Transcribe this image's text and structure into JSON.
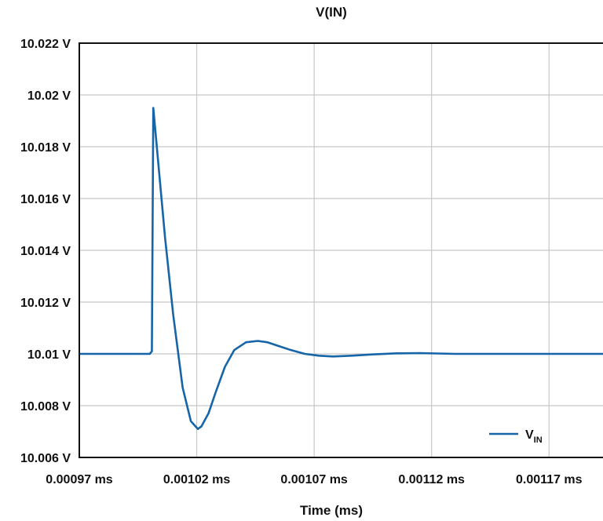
{
  "chart_data": {
    "type": "line",
    "title": "V(IN)",
    "xlabel": "Time (ms)",
    "ylabel": "",
    "xlim": [
      0.00097,
      0.001201
    ],
    "ylim": [
      10.006,
      10.022
    ],
    "grid": true,
    "legend_position": "bottom-right",
    "x_ticks": [
      "0.00097 ms",
      "0.00102 ms",
      "0.00107 ms",
      "0.00112 ms",
      "0.00117 ms"
    ],
    "x_tick_values": [
      0.00097,
      0.00102,
      0.00107,
      0.00112,
      0.00117
    ],
    "y_ticks": [
      "10.022 V",
      "10.02 V",
      "10.018 V",
      "10.016 V",
      "10.014 V",
      "10.012 V",
      "10.01 V",
      "10.008 V",
      "10.006 V"
    ],
    "y_tick_values": [
      10.022,
      10.02,
      10.018,
      10.016,
      10.014,
      10.012,
      10.01,
      10.008,
      10.006
    ],
    "series": [
      {
        "name": "VIN",
        "legend_main": "V",
        "legend_sub": "IN",
        "color": "#1565a8",
        "x": [
          0.00097,
          0.000985,
          0.001,
          0.0010009,
          0.0010015,
          0.0010035,
          0.0010065,
          0.00101,
          0.001014,
          0.0010175,
          0.0010205,
          0.001022,
          0.001025,
          0.001028,
          0.001032,
          0.001036,
          0.001041,
          0.001046,
          0.00105,
          0.001055,
          0.00106,
          0.001066,
          0.001072,
          0.001078,
          0.001086,
          0.001095,
          0.001105,
          0.001115,
          0.00113,
          0.00115,
          0.00118,
          0.001201
        ],
        "y": [
          10.01,
          10.01,
          10.01,
          10.0101,
          10.0195,
          10.0175,
          10.0145,
          10.0115,
          10.0087,
          10.0074,
          10.0071,
          10.0072,
          10.0077,
          10.0085,
          10.0095,
          10.01015,
          10.01045,
          10.0105,
          10.01045,
          10.0103,
          10.01015,
          10.01,
          10.00993,
          10.0099,
          10.00993,
          10.00998,
          10.01002,
          10.01003,
          10.01,
          10.01,
          10.01,
          10.01
        ]
      }
    ]
  }
}
